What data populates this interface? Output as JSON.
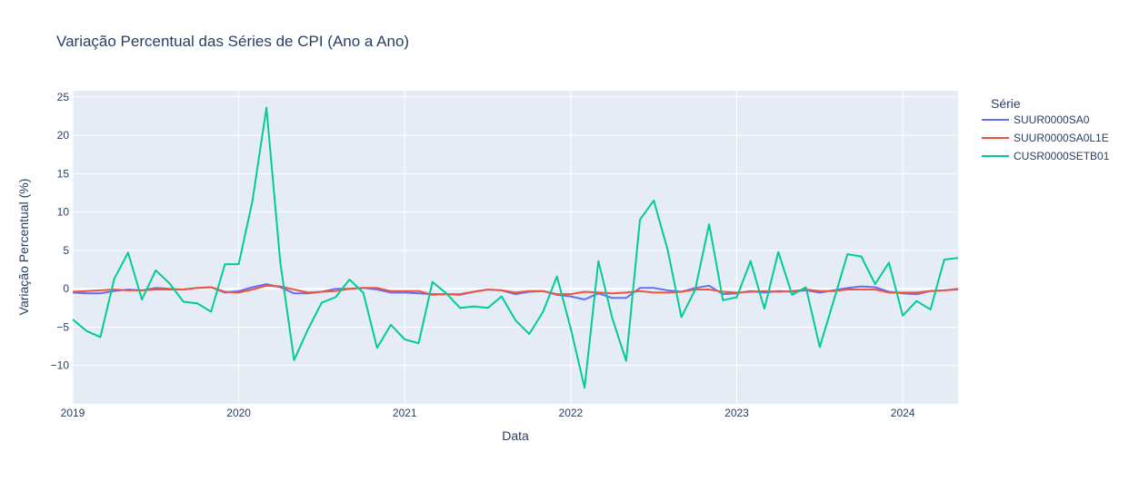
{
  "chart_data": {
    "type": "line",
    "title": "Variação Percentual das Séries de CPI (Ano a Ano)",
    "xlabel": "Data",
    "ylabel": "Variação Percentual (%)",
    "x_start": "2019-01",
    "x_tick_labels": [
      "2019",
      "2020",
      "2021",
      "2022",
      "2023",
      "2024"
    ],
    "y_tick_labels": [
      "25",
      "20",
      "15",
      "10",
      "5",
      "0",
      "−5",
      "−10"
    ],
    "xlim": [
      "2019-01",
      "2024-05"
    ],
    "ylim": [
      -15,
      25.8
    ],
    "grid": true,
    "plot_background": "#E5ECF6",
    "legend": {
      "title": "Série",
      "placement": "right"
    },
    "series": [
      {
        "name": "SUUR0000SA0",
        "color": "#636EFA",
        "values": [
          -0.5,
          -0.6,
          -0.6,
          -0.3,
          -0.1,
          -0.2,
          0.1,
          0.0,
          -0.1,
          0.1,
          0.2,
          -0.5,
          -0.3,
          0.2,
          0.6,
          0.2,
          -0.6,
          -0.6,
          -0.4,
          0.0,
          0.0,
          0.1,
          -0.1,
          -0.5,
          -0.5,
          -0.6,
          -0.7,
          -0.7,
          -0.8,
          -0.4,
          -0.1,
          -0.2,
          -0.7,
          -0.4,
          -0.3,
          -0.8,
          -1.0,
          -1.4,
          -0.6,
          -1.2,
          -1.2,
          0.1,
          0.1,
          -0.2,
          -0.4,
          0.1,
          0.4,
          -0.7,
          -0.6,
          -0.3,
          -0.5,
          -0.3,
          -0.4,
          -0.2,
          -0.5,
          -0.2,
          0.1,
          0.3,
          0.2,
          -0.4,
          -0.6,
          -0.7,
          -0.3,
          -0.2,
          0.0
        ]
      },
      {
        "name": "SUUR0000SA0L1E",
        "color": "#EF553B",
        "values": [
          -0.4,
          -0.3,
          -0.2,
          -0.1,
          -0.2,
          -0.2,
          -0.1,
          -0.1,
          -0.1,
          0.1,
          0.2,
          -0.4,
          -0.5,
          -0.1,
          0.4,
          0.3,
          -0.1,
          -0.5,
          -0.4,
          -0.3,
          0.0,
          0.1,
          0.1,
          -0.3,
          -0.3,
          -0.3,
          -0.8,
          -0.7,
          -0.7,
          -0.4,
          -0.1,
          -0.2,
          -0.5,
          -0.3,
          -0.3,
          -0.7,
          -0.7,
          -0.4,
          -0.5,
          -0.6,
          -0.5,
          -0.3,
          -0.5,
          -0.5,
          -0.4,
          -0.1,
          -0.1,
          -0.4,
          -0.5,
          -0.4,
          -0.3,
          -0.4,
          -0.3,
          -0.1,
          -0.3,
          -0.3,
          -0.1,
          -0.1,
          -0.1,
          -0.5,
          -0.5,
          -0.5,
          -0.3,
          -0.2,
          -0.1
        ]
      },
      {
        "name": "CUSR0000SETB01",
        "color": "#00CC96",
        "values": [
          -4.0,
          -5.5,
          -6.3,
          1.3,
          4.7,
          -1.4,
          2.4,
          0.7,
          -1.7,
          -1.9,
          -3.0,
          3.2,
          3.2,
          11.5,
          23.6,
          3.5,
          -9.3,
          -5.3,
          -1.8,
          -1.1,
          1.2,
          -0.5,
          -7.7,
          -4.7,
          -6.6,
          -7.1,
          0.9,
          -0.6,
          -2.5,
          -2.3,
          -2.5,
          -1.0,
          -4.1,
          -5.9,
          -3.0,
          1.6,
          -5.2,
          -12.9,
          3.6,
          -3.8,
          -9.4,
          9.0,
          11.5,
          5.1,
          -3.7,
          -0.1,
          8.4,
          -1.5,
          -1.1,
          3.6,
          -2.6,
          4.8,
          -0.8,
          0.2,
          -7.6,
          -1.6,
          4.5,
          4.2,
          0.6,
          3.4,
          -3.5,
          -1.6,
          -2.7,
          3.8,
          4.0
        ]
      }
    ]
  }
}
